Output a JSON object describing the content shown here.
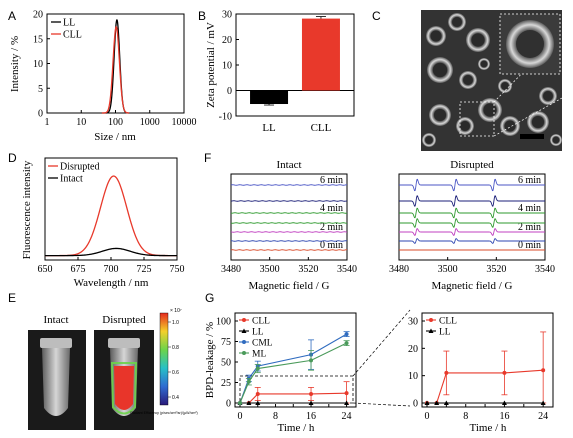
{
  "panel_labels": [
    "A",
    "B",
    "C",
    "D",
    "E",
    "F",
    "G"
  ],
  "chart_data": [
    {
      "id": "A",
      "type": "line",
      "xlabel": "Size / nm",
      "ylabel": "Intensity / %",
      "xscale": "log",
      "xlim": [
        1,
        10000
      ],
      "ylim": [
        0,
        20
      ],
      "xticks": [
        "1",
        "10",
        "100",
        "1000",
        "10000"
      ],
      "yticks": [
        "0",
        "5",
        "10",
        "15",
        "20"
      ],
      "legend": "top-left",
      "series": [
        {
          "name": "LL",
          "color": "#000000",
          "center": 110,
          "peak": 18.8,
          "width": 0.115
        },
        {
          "name": "CLL",
          "color": "#e8392b",
          "center": 105,
          "peak": 17.4,
          "width": 0.13
        }
      ]
    },
    {
      "id": "B",
      "type": "bar",
      "ylabel": "Zeta potential / mV",
      "ylim": [
        -10,
        30
      ],
      "yticks": [
        "-10",
        "0",
        "10",
        "20",
        "30"
      ],
      "categories": [
        "LL",
        "CLL"
      ],
      "values": [
        -5.3,
        28.2
      ],
      "errors": [
        0.4,
        0.8
      ],
      "colors": [
        "#000000",
        "#e8392b"
      ]
    },
    {
      "id": "D",
      "type": "line",
      "xlabel": "Wavelength / nm",
      "ylabel": "Fluorescence intensity",
      "xlim": [
        650,
        750
      ],
      "xticks": [
        "650",
        "675",
        "700",
        "725",
        "750"
      ],
      "legend": "top-left",
      "series": [
        {
          "name": "Disrupted",
          "color": "#e8392b",
          "peak": 1.0,
          "center": 702,
          "width": 14
        },
        {
          "name": "Intact",
          "color": "#000000",
          "peak": 0.09,
          "center": 704,
          "width": 15
        }
      ]
    },
    {
      "id": "F",
      "type": "line",
      "xlabel": "Magnetic field / G",
      "xlim": [
        3480,
        3540
      ],
      "xticks": [
        "3480",
        "3500",
        "3520",
        "3540"
      ],
      "panels": [
        {
          "title": "Intact"
        },
        {
          "title": "Disrupted"
        }
      ],
      "traces": [
        {
          "time": "0 min",
          "color": "#d94b2a"
        },
        {
          "time": "",
          "color": "#2d46b0"
        },
        {
          "time": "2 min",
          "color": "#c040c0"
        },
        {
          "time": "",
          "color": "#2e9a2e"
        },
        {
          "time": "4 min",
          "color": "#2e9a2e"
        },
        {
          "time": "",
          "color": "#1b1f78"
        },
        {
          "time": "6 min",
          "color": "#4b56c6"
        }
      ],
      "esr_peaks": [
        3487,
        3503,
        3519
      ]
    },
    {
      "id": "G",
      "type": "line",
      "xlabel": "Time / h",
      "ylabel": "BPD-leakage / %",
      "xlim": [
        0,
        25
      ],
      "ylim": [
        0,
        100
      ],
      "xticks": [
        "0",
        "4",
        "8",
        "12",
        "16",
        "20",
        "24"
      ],
      "yticks": [
        "0",
        "25",
        "50",
        "75",
        "100"
      ],
      "legend": "top-left",
      "series": [
        {
          "name": "CLL",
          "color": "#e8392b",
          "marker": "circle",
          "x": [
            0,
            2,
            4,
            16,
            24
          ],
          "y": [
            0,
            0,
            11,
            11,
            12
          ],
          "err": [
            0,
            0,
            8,
            8,
            14
          ]
        },
        {
          "name": "LL",
          "color": "#000000",
          "marker": "triangle",
          "x": [
            0,
            2,
            4,
            16,
            24
          ],
          "y": [
            0,
            0,
            0,
            0,
            0
          ],
          "err": [
            0,
            0,
            0,
            0,
            0
          ]
        },
        {
          "name": "CML",
          "color": "#2f6bbf",
          "marker": "circle",
          "x": [
            0,
            2,
            4,
            16,
            24
          ],
          "y": [
            0,
            30,
            45,
            59,
            84
          ],
          "err": [
            0,
            4,
            6,
            18,
            3
          ]
        },
        {
          "name": "ML",
          "color": "#4a9a5a",
          "marker": "circle",
          "x": [
            0,
            2,
            4,
            16,
            24
          ],
          "y": [
            0,
            26,
            42,
            52,
            73
          ],
          "err": [
            0,
            4,
            5,
            12,
            3
          ]
        }
      ]
    },
    {
      "id": "G-inset",
      "type": "line",
      "xlim": [
        0,
        25
      ],
      "ylim": [
        0,
        30
      ],
      "xticks": [
        "0",
        "4",
        "8",
        "12",
        "16",
        "20",
        "24"
      ],
      "yticks": [
        "0",
        "10",
        "20",
        "30"
      ],
      "legend": "top-left",
      "series": [
        {
          "name": "CLL",
          "color": "#e8392b",
          "x": [
            0,
            2,
            4,
            16,
            24
          ],
          "y": [
            0,
            0,
            11,
            11,
            12
          ],
          "err": [
            0,
            0,
            8,
            8,
            14
          ]
        },
        {
          "name": "LL",
          "color": "#000000",
          "x": [
            0,
            2,
            4,
            16,
            24
          ],
          "y": [
            0,
            0,
            0,
            0,
            0
          ],
          "err": [
            0,
            0,
            0,
            0,
            0
          ]
        }
      ]
    }
  ],
  "panel_e": {
    "titles": [
      "Intact",
      "Disrupted"
    ],
    "colorbar_ticks": [
      "1.0",
      "0.8",
      "0.6",
      "0.4"
    ],
    "colorbar_exponent": "× 10⁷",
    "colorbar_label": "Radiant Efficiency (p/sec/cm²/sr)/(µW/cm²)"
  },
  "panel_c": {
    "scalebar": "scale bar"
  }
}
